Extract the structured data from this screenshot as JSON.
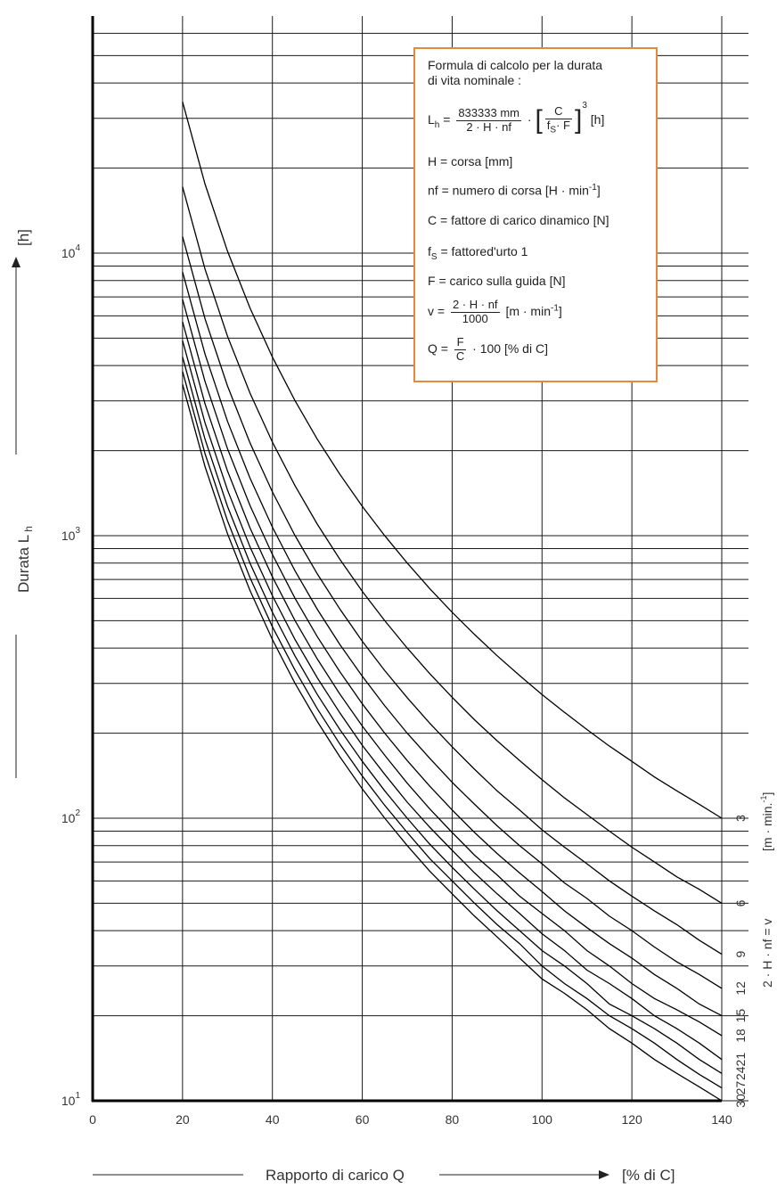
{
  "chart_data": {
    "type": "line",
    "xlabel": "Rapporto di carico Q",
    "xunit": "[% di C]",
    "ylabel": "Durata L",
    "ylabel_sub": "h",
    "yunit": "[h]",
    "y_scale": "log",
    "xlim": [
      0,
      140
    ],
    "ylim": [
      10,
      70000
    ],
    "x_ticks": [
      "0",
      "20",
      "40",
      "60",
      "80",
      "100",
      "120",
      "140"
    ],
    "y_ticks": [
      {
        "base": "10",
        "exp": "1"
      },
      {
        "base": "10",
        "exp": "2"
      },
      {
        "base": "10",
        "exp": "3"
      },
      {
        "base": "10",
        "exp": "4"
      }
    ],
    "series_axis_label": "2 · H · nf = v",
    "series_axis_unit": "[m · min.",
    "series_axis_unit_sup": "-1",
    "series_axis_unit_close": "]",
    "x": [
      20,
      25,
      30,
      35,
      40,
      45,
      50,
      55,
      60,
      65,
      70,
      75,
      80,
      85,
      90,
      95,
      100,
      105,
      110,
      115,
      120,
      125,
      130,
      135,
      140
    ],
    "series": [
      {
        "name": "3",
        "values": [
          34300,
          17560,
          10160,
          6400,
          4288,
          3011,
          2195,
          1649,
          1270,
          999,
          800,
          650,
          536,
          447,
          376,
          320,
          274,
          237,
          206,
          180,
          159,
          140,
          125,
          112,
          100
        ]
      },
      {
        "name": "6",
        "values": [
          17150,
          8780,
          5081,
          3200,
          2144,
          1506,
          1098,
          825,
          635,
          500,
          400,
          325,
          268,
          223,
          188,
          160,
          137,
          118,
          103,
          90,
          79,
          70,
          62,
          56,
          50
        ]
      },
      {
        "name": "9",
        "values": [
          11430,
          5853,
          3387,
          2133,
          1429,
          1004,
          732,
          550,
          423,
          333,
          267,
          217,
          179,
          149,
          125,
          107,
          91,
          79,
          69,
          60,
          53,
          47,
          42,
          37,
          33
        ]
      },
      {
        "name": "12",
        "values": [
          8575,
          4390,
          2540,
          1600,
          1072,
          753,
          549,
          412,
          318,
          250,
          200,
          163,
          134,
          112,
          94,
          80,
          69,
          59,
          52,
          45,
          40,
          35,
          31,
          28,
          25
        ]
      },
      {
        "name": "15",
        "values": [
          6860,
          3512,
          2032,
          1280,
          858,
          602,
          439,
          330,
          254,
          200,
          160,
          130,
          107,
          89,
          75,
          64,
          55,
          47,
          41,
          36,
          32,
          28,
          25,
          22,
          20
        ]
      },
      {
        "name": "18",
        "values": [
          5717,
          2927,
          1694,
          1067,
          715,
          502,
          366,
          275,
          212,
          167,
          133,
          108,
          89,
          74,
          63,
          53,
          46,
          40,
          34,
          30,
          26,
          23,
          21,
          19,
          17
        ]
      },
      {
        "name": "21",
        "values": [
          4900,
          2509,
          1452,
          914,
          613,
          430,
          314,
          236,
          181,
          143,
          114,
          93,
          77,
          64,
          54,
          46,
          39,
          34,
          29,
          26,
          23,
          20,
          18,
          16,
          14
        ]
      },
      {
        "name": "24",
        "values": [
          4288,
          2195,
          1270,
          800,
          536,
          376,
          274,
          206,
          159,
          125,
          100,
          81,
          67,
          56,
          47,
          40,
          34,
          30,
          26,
          22,
          20,
          18,
          16,
          14,
          12.5
        ]
      },
      {
        "name": "27",
        "values": [
          3811,
          1951,
          1129,
          711,
          476,
          335,
          244,
          183,
          141,
          111,
          89,
          72,
          60,
          50,
          42,
          36,
          30,
          26,
          23,
          20,
          18,
          16,
          14,
          12.4,
          11.1
        ]
      },
      {
        "name": "30",
        "values": [
          3430,
          1756,
          1016,
          640,
          429,
          301,
          220,
          165,
          127,
          100,
          80,
          65,
          54,
          45,
          38,
          32,
          27,
          24,
          21,
          18,
          16,
          14,
          12.5,
          11.2,
          10
        ]
      }
    ]
  },
  "formula": {
    "title_line1": "Formula di calcolo per la durata",
    "title_line2": "di vita nominale :",
    "lh_lhs": "L",
    "lh_lhs_sub": "h",
    "lh_eq": " =",
    "lh_num": "833333 mm",
    "lh_den": "2 · H · nf",
    "lh_dot": "·",
    "lh_inner_num": "C",
    "lh_inner_den": "f",
    "lh_inner_den_sub": "S",
    "lh_inner_den_rest": "· F",
    "lh_exp": "3",
    "lh_unit": "[h]",
    "h_def": "H  =  corsa [mm]",
    "nf_def": "nf =  numero di corsa [H · min",
    "nf_sup": "-1",
    "nf_close": "]",
    "c_def": "C  =  fattore di carico dinamico [N]",
    "fs_lhs": "f",
    "fs_sub": "S",
    "fs_def": " =  fattored'urto 1",
    "f_def": "F  =  carico sulla guida [N]",
    "v_lhs": "v  =",
    "v_num": "2 · H · nf",
    "v_den": "1000",
    "v_unit": "[m · min",
    "v_sup": "-1",
    "v_close": "]",
    "q_lhs": "Q  =",
    "q_num": "F",
    "q_den": "C",
    "q_rest": "·  100 [% di C]"
  },
  "colors": {
    "box_border": "#e8883a",
    "lines": "#000000"
  }
}
